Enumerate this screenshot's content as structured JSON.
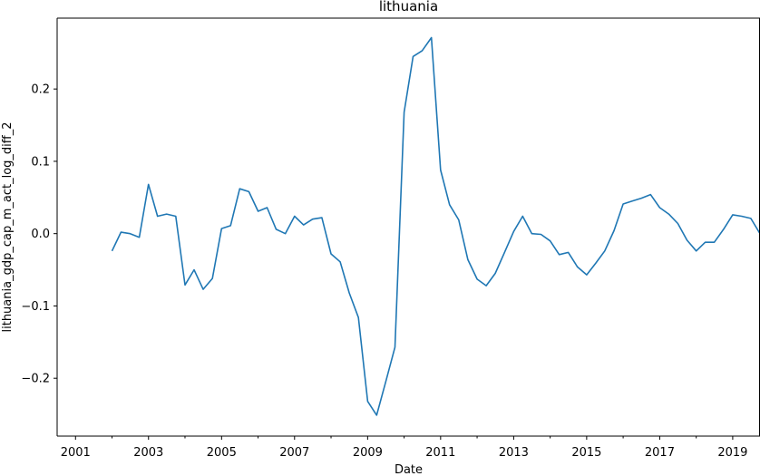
{
  "chart_data": {
    "type": "line",
    "title": "lithuania",
    "xlabel": "Date",
    "ylabel": "lithuania_gdp_cap_m_act_log_diff_2",
    "xlim": [
      "2000-07-01",
      "2019-10-01"
    ],
    "ylim": [
      -0.28,
      0.298
    ],
    "x_ticks": [
      "2001",
      "2003",
      "2005",
      "2007",
      "2009",
      "2011",
      "2013",
      "2015",
      "2017",
      "2019"
    ],
    "y_ticks": [
      -0.2,
      -0.1,
      0.0,
      0.1,
      0.2
    ],
    "y_tick_labels": [
      "−0.2",
      "−0.1",
      "0.0",
      "0.1",
      "0.2"
    ],
    "grid": false,
    "line_color": "#1f77b4",
    "series": [
      {
        "x": [
          "2002-01-01",
          "2002-04-01",
          "2002-07-01",
          "2002-10-01",
          "2003-01-01",
          "2003-04-01",
          "2003-07-01",
          "2003-10-01",
          "2004-01-01",
          "2004-04-01",
          "2004-07-01",
          "2004-10-01",
          "2005-01-01",
          "2005-04-01",
          "2005-07-01",
          "2005-10-01",
          "2006-01-01",
          "2006-04-01",
          "2006-07-01",
          "2006-10-01",
          "2007-01-01",
          "2007-04-01",
          "2007-07-01",
          "2007-10-01",
          "2008-01-01",
          "2008-04-01",
          "2008-07-01",
          "2008-10-01",
          "2009-01-01",
          "2009-04-01",
          "2009-07-01",
          "2009-10-01",
          "2010-01-01",
          "2010-04-01",
          "2010-07-01",
          "2010-10-01",
          "2011-01-01",
          "2011-04-01",
          "2011-07-01",
          "2011-10-01",
          "2012-01-01",
          "2012-04-01",
          "2012-07-01",
          "2012-10-01",
          "2013-01-01",
          "2013-04-01",
          "2013-07-01",
          "2013-10-01",
          "2014-01-01",
          "2014-04-01",
          "2014-07-01",
          "2014-10-01",
          "2015-01-01",
          "2015-04-01",
          "2015-07-01",
          "2015-10-01",
          "2016-01-01",
          "2016-04-01",
          "2016-07-01",
          "2016-10-01",
          "2017-01-01",
          "2017-04-01",
          "2017-07-01",
          "2017-10-01",
          "2018-01-01",
          "2018-04-01",
          "2018-07-01",
          "2018-10-01",
          "2019-01-01",
          "2019-04-01",
          "2019-07-01",
          "2019-10-01"
        ],
        "y": [
          -0.024,
          0.002,
          0.0,
          -0.005,
          0.068,
          0.024,
          0.027,
          0.024,
          -0.071,
          -0.05,
          -0.077,
          -0.062,
          0.007,
          0.011,
          0.062,
          0.058,
          0.031,
          0.036,
          0.006,
          0.0,
          0.024,
          0.012,
          0.02,
          0.022,
          -0.028,
          -0.039,
          -0.082,
          -0.116,
          -0.232,
          -0.251,
          -0.205,
          -0.157,
          0.168,
          0.245,
          0.253,
          0.271,
          0.088,
          0.04,
          0.019,
          -0.036,
          -0.063,
          -0.072,
          -0.055,
          -0.026,
          0.003,
          0.024,
          0.0,
          -0.001,
          -0.01,
          -0.029,
          -0.026,
          -0.046,
          -0.057,
          -0.041,
          -0.024,
          0.004,
          0.041,
          0.045,
          0.049,
          0.054,
          0.036,
          0.027,
          0.014,
          -0.009,
          -0.024,
          -0.012,
          -0.012,
          0.006,
          0.026,
          0.024,
          0.021,
          0.0
        ]
      }
    ]
  }
}
